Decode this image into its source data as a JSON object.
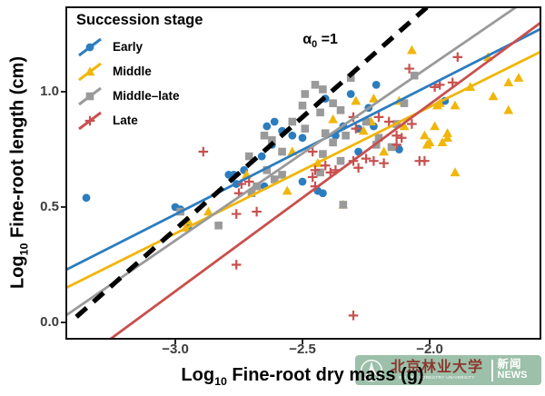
{
  "figure": {
    "x_axis": {
      "title_prefix": "Log",
      "title_sub": "10",
      "title_rest": " Fine-root dry mass (g)"
    },
    "y_axis": {
      "title_prefix": "Log",
      "title_sub": "10",
      "title_rest": " Fine-root length (cm)"
    }
  },
  "legend": {
    "title": "Succession stage",
    "items": [
      {
        "series": "early",
        "label": "Early"
      },
      {
        "series": "middle",
        "label": "Middle"
      },
      {
        "series": "middle_late",
        "label": "Middle–late"
      },
      {
        "series": "late",
        "label": "Late"
      }
    ]
  },
  "watermark": {
    "university_cn": "北京林业大学",
    "university_en": "BEIJING FORESTRY UNIVERSITY",
    "news_cn": "新闻",
    "news_en": "NEWS",
    "bg_color": "#9cc0a9",
    "cn_text_color": "#8c372e"
  },
  "chart_data": {
    "type": "scatter",
    "xlabel": "Log10 Fine-root dry mass (g)",
    "ylabel": "Log10 Fine-root length (cm)",
    "xlim": [
      -3.4286,
      -1.5643
    ],
    "ylim": [
      -0.071,
      1.366
    ],
    "grid": false,
    "legend_position": "top-left-inside",
    "x_ticks": {
      "values": [
        -3.0,
        -2.5,
        -2.0
      ],
      "labels": [
        "−3.0",
        "−2.5",
        "−2.0"
      ]
    },
    "y_ticks": {
      "values": [
        0.0,
        0.5,
        1.0
      ],
      "labels": [
        "0.0",
        "0.5",
        "1.0"
      ]
    },
    "annotation": {
      "main": "α",
      "sub": "0",
      "rest": " =1",
      "x": -2.43,
      "y": 1.22
    },
    "reference_line": {
      "style": "dashed",
      "color": "#000000",
      "slope": 1,
      "x1": -3.389,
      "y1": 0.024,
      "x2": -2.011,
      "y2": 1.366
    },
    "series": [
      {
        "key": "early",
        "name": "Early",
        "color": "#2b7dbf",
        "marker": "circle",
        "regression": {
          "x1": -3.429,
          "y1": 0.228,
          "x2": -1.564,
          "y2": 1.272
        },
        "points": [
          [
            -3.35,
            0.54
          ],
          [
            -3.0,
            0.5
          ],
          [
            -2.98,
            0.49
          ],
          [
            -2.95,
            0.41
          ],
          [
            -2.79,
            0.64
          ],
          [
            -2.77,
            0.64
          ],
          [
            -2.76,
            0.6
          ],
          [
            -2.73,
            0.66
          ],
          [
            -2.66,
            0.72
          ],
          [
            -2.64,
            0.85
          ],
          [
            -2.61,
            0.87
          ],
          [
            -2.58,
            0.83
          ],
          [
            -2.54,
            0.81
          ],
          [
            -2.5,
            0.8
          ],
          [
            -2.62,
            0.77
          ],
          [
            -2.41,
            0.97
          ],
          [
            -2.65,
            0.59
          ],
          [
            -2.5,
            0.61
          ],
          [
            -2.44,
            0.57
          ],
          [
            -2.42,
            0.56
          ],
          [
            -2.21,
            1.03
          ],
          [
            -2.31,
            0.99
          ],
          [
            -2.24,
            0.93
          ],
          [
            -2.34,
            0.85
          ],
          [
            -2.28,
            0.84
          ],
          [
            -2.22,
            0.85
          ],
          [
            -2.12,
            0.75
          ],
          [
            -2.28,
            0.74
          ],
          [
            -2.37,
            0.81
          ],
          [
            -1.94,
            0.96
          ]
        ]
      },
      {
        "key": "middle",
        "name": "Middle",
        "color": "#f0b60a",
        "marker": "triangle",
        "regression": {
          "x1": -3.429,
          "y1": 0.15,
          "x2": -1.564,
          "y2": 1.173
        },
        "points": [
          [
            -2.54,
            0.74
          ],
          [
            -2.44,
            0.69
          ],
          [
            -2.72,
            0.64
          ],
          [
            -2.56,
            0.57
          ],
          [
            -2.95,
            0.44
          ],
          [
            -2.96,
            0.41
          ],
          [
            -2.87,
            0.48
          ],
          [
            -2.29,
            0.96
          ],
          [
            -2.22,
            0.97
          ],
          [
            -2.12,
            0.96
          ],
          [
            -2.38,
            0.88
          ],
          [
            -2.23,
            0.87
          ],
          [
            -2.26,
            0.83
          ],
          [
            -2.1,
            0.85
          ],
          [
            -1.98,
            0.85
          ],
          [
            -2.02,
            0.81
          ],
          [
            -2.01,
            0.77
          ],
          [
            -2.18,
            0.74
          ],
          [
            -1.96,
            0.95
          ],
          [
            -1.77,
            1.15
          ],
          [
            -1.69,
            1.04
          ],
          [
            -1.65,
            1.06
          ],
          [
            -1.84,
            1.02
          ],
          [
            -1.75,
            0.98
          ],
          [
            -1.97,
            0.94
          ],
          [
            -1.9,
            0.94
          ],
          [
            -1.69,
            0.92
          ],
          [
            -1.93,
            0.82
          ],
          [
            -2.0,
            0.78
          ],
          [
            -1.95,
            0.78
          ],
          [
            -1.93,
            0.8
          ],
          [
            -1.9,
            0.65
          ],
          [
            -2.07,
            1.18
          ],
          [
            -2.34,
            0.51
          ]
        ]
      },
      {
        "key": "middle_late",
        "name": "Middle–late",
        "color": "#9a9a9a",
        "marker": "square",
        "regression": {
          "x1": -3.429,
          "y1": 0.031,
          "x2": -1.661,
          "y2": 1.366
        },
        "points": [
          [
            -2.45,
            1.03
          ],
          [
            -2.49,
            0.99
          ],
          [
            -2.42,
            1.01
          ],
          [
            -2.5,
            0.94
          ],
          [
            -2.43,
            0.91
          ],
          [
            -2.54,
            0.87
          ],
          [
            -2.49,
            0.84
          ],
          [
            -2.41,
            0.82
          ],
          [
            -2.65,
            0.81
          ],
          [
            -2.62,
            0.79
          ],
          [
            -2.71,
            0.72
          ],
          [
            -2.64,
            0.66
          ],
          [
            -2.58,
            0.74
          ],
          [
            -2.42,
            0.73
          ],
          [
            -2.43,
            0.65
          ],
          [
            -2.31,
            1.06
          ],
          [
            -2.38,
            0.95
          ],
          [
            -2.35,
            0.92
          ],
          [
            -2.25,
            0.87
          ],
          [
            -2.33,
            0.81
          ],
          [
            -2.38,
            0.78
          ],
          [
            -2.2,
            0.8
          ],
          [
            -2.13,
            0.86
          ],
          [
            -2.1,
            0.95
          ],
          [
            -2.06,
            1.07
          ],
          [
            -2.21,
            0.77
          ],
          [
            -2.15,
            0.76
          ],
          [
            -2.35,
            0.7
          ],
          [
            -2.68,
            0.59
          ],
          [
            -2.7,
            0.56
          ],
          [
            -2.61,
            0.62
          ],
          [
            -2.58,
            0.64
          ],
          [
            -2.83,
            0.42
          ],
          [
            -2.98,
            0.48
          ],
          [
            -2.34,
            0.51
          ]
        ]
      },
      {
        "key": "late",
        "name": "Late",
        "color": "#c8504e",
        "marker": "plus",
        "regression": {
          "x1": -3.254,
          "y1": -0.071,
          "x2": -1.564,
          "y2": 1.299
        },
        "points": [
          [
            -2.46,
            0.74
          ],
          [
            -2.45,
            0.66
          ],
          [
            -2.41,
            0.68
          ],
          [
            -2.08,
            1.1
          ],
          [
            -2.3,
            0.89
          ],
          [
            -2.29,
            0.84
          ],
          [
            -2.2,
            0.89
          ],
          [
            -2.16,
            0.87
          ],
          [
            -2.13,
            0.81
          ],
          [
            -2.11,
            0.8
          ],
          [
            -2.3,
            0.7
          ],
          [
            -2.25,
            0.71
          ],
          [
            -2.22,
            0.7
          ],
          [
            -2.18,
            0.69
          ],
          [
            -2.04,
            0.7
          ],
          [
            -2.37,
            0.66
          ],
          [
            -2.28,
            0.67
          ],
          [
            -2.13,
            0.77
          ],
          [
            -2.07,
            0.86
          ],
          [
            -2.74,
            0.6
          ],
          [
            -2.71,
            0.61
          ],
          [
            -2.75,
            0.56
          ],
          [
            -2.46,
            0.63
          ],
          [
            -2.45,
            0.59
          ],
          [
            -2.76,
            0.47
          ],
          [
            -2.68,
            0.48
          ],
          [
            -2.76,
            0.25
          ],
          [
            -1.89,
            1.15
          ],
          [
            -1.96,
            1.03
          ],
          [
            -1.91,
            1.04
          ],
          [
            -1.98,
            1.02
          ],
          [
            -2.89,
            0.74
          ],
          [
            -2.3,
            0.03
          ],
          [
            -2.02,
            0.7
          ],
          [
            -2.39,
            0.65
          ]
        ]
      }
    ]
  }
}
